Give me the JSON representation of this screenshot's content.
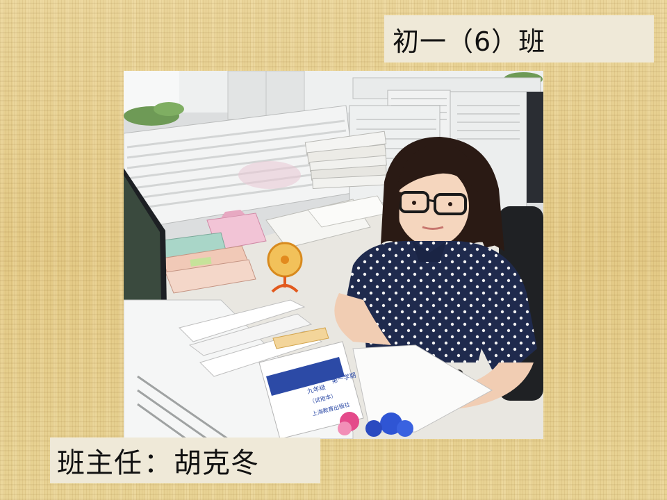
{
  "class_label": "初一（6）班",
  "teacher": {
    "title": "班主任",
    "separator": "：",
    "name": "胡克冬"
  },
  "photo": {
    "book_cover_text": [
      "九年级",
      "第一学期",
      "（试用本）",
      "上海教育出版社"
    ]
  }
}
